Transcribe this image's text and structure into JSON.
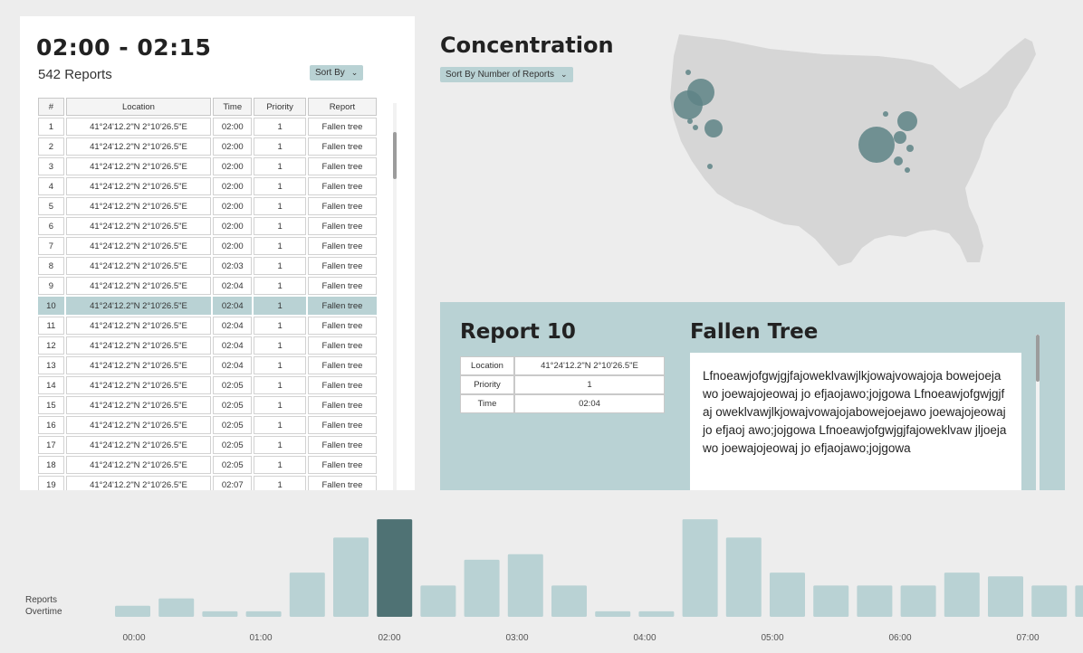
{
  "left": {
    "range_title": "02:00 - 02:15",
    "report_count": "542 Reports",
    "sort_label": "Sort By",
    "columns": [
      "#",
      "Location",
      "Time",
      "Priority",
      "Report"
    ],
    "selected_row": 10,
    "rows": [
      [
        "1",
        "41°24'12.2\"N 2°10'26.5\"E",
        "02:00",
        "1",
        "Fallen tree"
      ],
      [
        "2",
        "41°24'12.2\"N 2°10'26.5\"E",
        "02:00",
        "1",
        "Fallen tree"
      ],
      [
        "3",
        "41°24'12.2\"N 2°10'26.5\"E",
        "02:00",
        "1",
        "Fallen tree"
      ],
      [
        "4",
        "41°24'12.2\"N 2°10'26.5\"E",
        "02:00",
        "1",
        "Fallen tree"
      ],
      [
        "5",
        "41°24'12.2\"N 2°10'26.5\"E",
        "02:00",
        "1",
        "Fallen tree"
      ],
      [
        "6",
        "41°24'12.2\"N 2°10'26.5\"E",
        "02:00",
        "1",
        "Fallen tree"
      ],
      [
        "7",
        "41°24'12.2\"N 2°10'26.5\"E",
        "02:00",
        "1",
        "Fallen tree"
      ],
      [
        "8",
        "41°24'12.2\"N 2°10'26.5\"E",
        "02:03",
        "1",
        "Fallen tree"
      ],
      [
        "9",
        "41°24'12.2\"N 2°10'26.5\"E",
        "02:04",
        "1",
        "Fallen tree"
      ],
      [
        "10",
        "41°24'12.2\"N 2°10'26.5\"E",
        "02:04",
        "1",
        "Fallen tree"
      ],
      [
        "11",
        "41°24'12.2\"N 2°10'26.5\"E",
        "02:04",
        "1",
        "Fallen tree"
      ],
      [
        "12",
        "41°24'12.2\"N 2°10'26.5\"E",
        "02:04",
        "1",
        "Fallen tree"
      ],
      [
        "13",
        "41°24'12.2\"N 2°10'26.5\"E",
        "02:04",
        "1",
        "Fallen tree"
      ],
      [
        "14",
        "41°24'12.2\"N 2°10'26.5\"E",
        "02:05",
        "1",
        "Fallen tree"
      ],
      [
        "15",
        "41°24'12.2\"N 2°10'26.5\"E",
        "02:05",
        "1",
        "Fallen tree"
      ],
      [
        "16",
        "41°24'12.2\"N 2°10'26.5\"E",
        "02:05",
        "1",
        "Fallen tree"
      ],
      [
        "17",
        "41°24'12.2\"N 2°10'26.5\"E",
        "02:05",
        "1",
        "Fallen tree"
      ],
      [
        "18",
        "41°24'12.2\"N 2°10'26.5\"E",
        "02:05",
        "1",
        "Fallen tree"
      ],
      [
        "19",
        "41°24'12.2\"N 2°10'26.5\"E",
        "02:07",
        "1",
        "Fallen tree"
      ]
    ]
  },
  "concentration": {
    "title": "Concentration",
    "sort_label": "Sort By Number of Reports"
  },
  "report": {
    "title": "Report 10",
    "type": "Fallen Tree",
    "details": [
      {
        "label": "Location",
        "value": "41°24'12.2\"N 2°10'26.5\"E"
      },
      {
        "label": "Priority",
        "value": "1"
      },
      {
        "label": "Time",
        "value": "02:04"
      }
    ],
    "body": "Lfnoeawjofgwjgjfajoweklvawjlkjowajvowajoja bowejoejawo joewajojeowaj jo efjaojawo;jojgowa Lfnoeawjofgwjgjfaj oweklvawjlkjowajvowajojabowejoejawo joewajojeowaj jo efjaoj awo;jojgowa Lfnoeawjofgwjgjfajoweklvaw jljoejawo joewajojeowaj jo efjaojawo;jojgowa"
  },
  "overtime": {
    "label_line1": "Reports",
    "label_line2": "Overtime"
  },
  "colors": {
    "accent": "#b9d2d4",
    "bar": "#b9d2d4",
    "bar_selected": "#4f7274",
    "map_land": "#d6d6d6",
    "bubble": "#5e8486"
  },
  "chart_data": {
    "type": "bar",
    "x_tick_labels": [
      "00:00",
      "01:00",
      "02:00",
      "03:00",
      "04:00",
      "05:00",
      "06:00",
      "07:00"
    ],
    "values": [
      6,
      10,
      3,
      3,
      24,
      43,
      53,
      17,
      31,
      34,
      17,
      3,
      3,
      53,
      43,
      24,
      17,
      17,
      17,
      24,
      22,
      17,
      17
    ],
    "selected_index": 6,
    "ylim": [
      0,
      55
    ]
  }
}
